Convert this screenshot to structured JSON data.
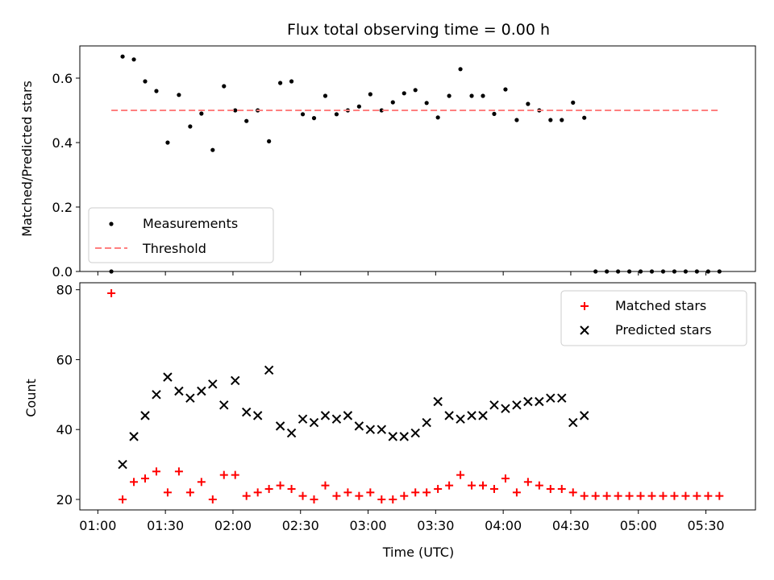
{
  "chart_data": [
    {
      "type": "scatter",
      "title": "Flux total observing time = 0.00 h",
      "xlabel": "",
      "ylabel": "Matched/Predicted stars",
      "xlim": [
        "00:52",
        "05:52"
      ],
      "ylim": [
        0,
        0.7
      ],
      "yticks": [
        "0.0",
        "0.2",
        "0.4",
        "0.6"
      ],
      "grid": false,
      "legend_position": "lower-left",
      "series": [
        {
          "name": "Measurements",
          "marker": "dot",
          "color": "#000000",
          "x": [
            "01:06",
            "01:11",
            "01:16",
            "01:21",
            "01:26",
            "01:31",
            "01:36",
            "01:41",
            "01:46",
            "01:51",
            "01:56",
            "02:01",
            "02:06",
            "02:11",
            "02:16",
            "02:21",
            "02:26",
            "02:31",
            "02:36",
            "02:41",
            "02:46",
            "02:51",
            "02:56",
            "03:01",
            "03:06",
            "03:11",
            "03:16",
            "03:21",
            "03:26",
            "03:31",
            "03:36",
            "03:41",
            "03:46",
            "03:51",
            "03:56",
            "04:01",
            "04:06",
            "04:11",
            "04:16",
            "04:21",
            "04:26",
            "04:31",
            "04:36",
            "04:41",
            "04:46",
            "04:51",
            "04:56",
            "05:01",
            "05:06",
            "05:11",
            "05:16",
            "05:21",
            "05:26",
            "05:31",
            "05:36"
          ],
          "y": [
            0.0,
            0.667,
            0.658,
            0.59,
            0.56,
            0.4,
            0.548,
            0.45,
            0.49,
            0.377,
            0.575,
            0.5,
            0.467,
            0.5,
            0.404,
            0.585,
            0.59,
            0.488,
            0.476,
            0.545,
            0.488,
            0.5,
            0.512,
            0.55,
            0.5,
            0.525,
            0.553,
            0.563,
            0.523,
            0.478,
            0.545,
            0.628,
            0.545,
            0.545,
            0.489,
            0.565,
            0.47,
            0.52,
            0.5,
            0.47,
            0.47,
            0.524,
            0.477,
            0.0,
            0.0,
            0.0,
            0.0,
            0.0,
            0.0,
            0.0,
            0.0,
            0.0,
            0.0,
            0.0,
            0.0
          ]
        },
        {
          "name": "Threshold",
          "style": "dashed",
          "color": "#ff7f7f",
          "x": [
            "01:06",
            "05:36"
          ],
          "y": [
            0.5,
            0.5
          ]
        }
      ]
    },
    {
      "type": "scatter",
      "title": "",
      "xlabel": "Time (UTC)",
      "ylabel": "Count",
      "xlim": [
        "00:52",
        "05:52"
      ],
      "ylim": [
        17,
        82
      ],
      "xticks": [
        "01:00",
        "01:30",
        "02:00",
        "02:30",
        "03:00",
        "03:30",
        "04:00",
        "04:30",
        "05:00",
        "05:30"
      ],
      "yticks": [
        "20",
        "40",
        "60",
        "80"
      ],
      "grid": false,
      "legend_position": "upper-right",
      "series": [
        {
          "name": "Matched stars",
          "marker": "plus",
          "color": "#ff0000",
          "x": [
            "01:06",
            "01:11",
            "01:16",
            "01:21",
            "01:26",
            "01:31",
            "01:36",
            "01:41",
            "01:46",
            "01:51",
            "01:56",
            "02:01",
            "02:06",
            "02:11",
            "02:16",
            "02:21",
            "02:26",
            "02:31",
            "02:36",
            "02:41",
            "02:46",
            "02:51",
            "02:56",
            "03:01",
            "03:06",
            "03:11",
            "03:16",
            "03:21",
            "03:26",
            "03:31",
            "03:36",
            "03:41",
            "03:46",
            "03:51",
            "03:56",
            "04:01",
            "04:06",
            "04:11",
            "04:16",
            "04:21",
            "04:26",
            "04:31",
            "04:36",
            "04:41",
            "04:46",
            "04:51",
            "04:56",
            "05:01",
            "05:06",
            "05:11",
            "05:16",
            "05:21",
            "05:26",
            "05:31",
            "05:36"
          ],
          "y": [
            79,
            20,
            25,
            26,
            28,
            22,
            28,
            22,
            25,
            20,
            27,
            27,
            21,
            22,
            23,
            24,
            23,
            21,
            20,
            24,
            21,
            22,
            21,
            22,
            20,
            20,
            21,
            22,
            22,
            23,
            24,
            27,
            24,
            24,
            23,
            26,
            22,
            25,
            24,
            23,
            23,
            22,
            21,
            21,
            21,
            21,
            21,
            21,
            21,
            21,
            21,
            21,
            21,
            21,
            21
          ]
        },
        {
          "name": "Predicted stars",
          "marker": "x",
          "color": "#000000",
          "x": [
            "01:11",
            "01:16",
            "01:21",
            "01:26",
            "01:31",
            "01:36",
            "01:41",
            "01:46",
            "01:51",
            "01:56",
            "02:01",
            "02:06",
            "02:11",
            "02:16",
            "02:21",
            "02:26",
            "02:31",
            "02:36",
            "02:41",
            "02:46",
            "02:51",
            "02:56",
            "03:01",
            "03:06",
            "03:11",
            "03:16",
            "03:21",
            "03:26",
            "03:31",
            "03:36",
            "03:41",
            "03:46",
            "03:51",
            "03:56",
            "04:01",
            "04:06",
            "04:11",
            "04:16",
            "04:21",
            "04:26",
            "04:31",
            "04:36"
          ],
          "y": [
            30,
            38,
            44,
            50,
            55,
            51,
            49,
            51,
            53,
            47,
            54,
            45,
            44,
            57,
            41,
            39,
            43,
            42,
            44,
            43,
            44,
            41,
            40,
            40,
            38,
            38,
            39,
            42,
            48,
            44,
            43,
            44,
            44,
            47,
            46,
            47,
            48,
            48,
            49,
            49,
            42,
            44
          ]
        }
      ]
    }
  ]
}
